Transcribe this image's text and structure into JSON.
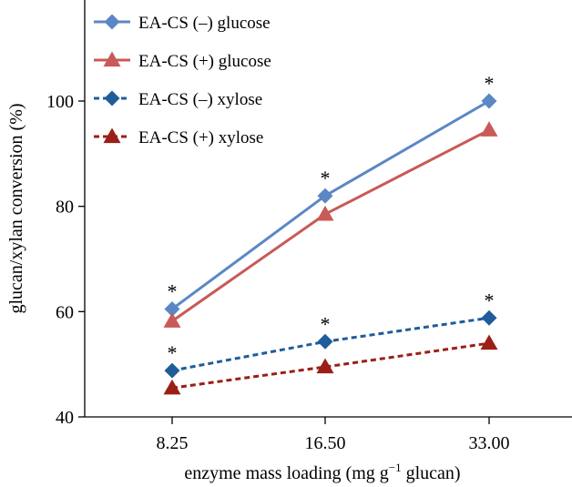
{
  "chart_data": {
    "type": "line",
    "title": "",
    "xlabel": "enzyme mass loading (mg g",
    "xlabel_superscript": "−1",
    "xlabel_suffix": " glucan)",
    "ylabel": "glucan/xylan conversion (%)",
    "categories": [
      "8.25",
      "16.50",
      "33.00"
    ],
    "ylim": [
      40,
      120
    ],
    "yticks": [
      40,
      60,
      80,
      100
    ],
    "grid": false,
    "legend_position": "top-left",
    "series": [
      {
        "name": "EA-CS (–) glucose",
        "values": [
          60.5,
          82.0,
          100.0
        ],
        "color": "#5b87c5",
        "marker": "diamond",
        "dashed": false,
        "asterisks": [
          true,
          true,
          true
        ]
      },
      {
        "name": "EA-CS (+) glucose",
        "values": [
          58.2,
          78.5,
          94.5
        ],
        "color": "#c85a57",
        "marker": "triangle",
        "dashed": false,
        "asterisks": [
          false,
          false,
          false
        ]
      },
      {
        "name": "EA-CS (–) xylose",
        "values": [
          48.8,
          54.3,
          58.8
        ],
        "color": "#1f5c9b",
        "marker": "diamond",
        "dashed": true,
        "asterisks": [
          true,
          true,
          true
        ]
      },
      {
        "name": "EA-CS (+) xylose",
        "values": [
          45.5,
          49.5,
          54.0
        ],
        "color": "#9a1f17",
        "marker": "triangle",
        "dashed": true,
        "asterisks": [
          false,
          false,
          false
        ]
      }
    ],
    "annotation_symbol": "*"
  }
}
